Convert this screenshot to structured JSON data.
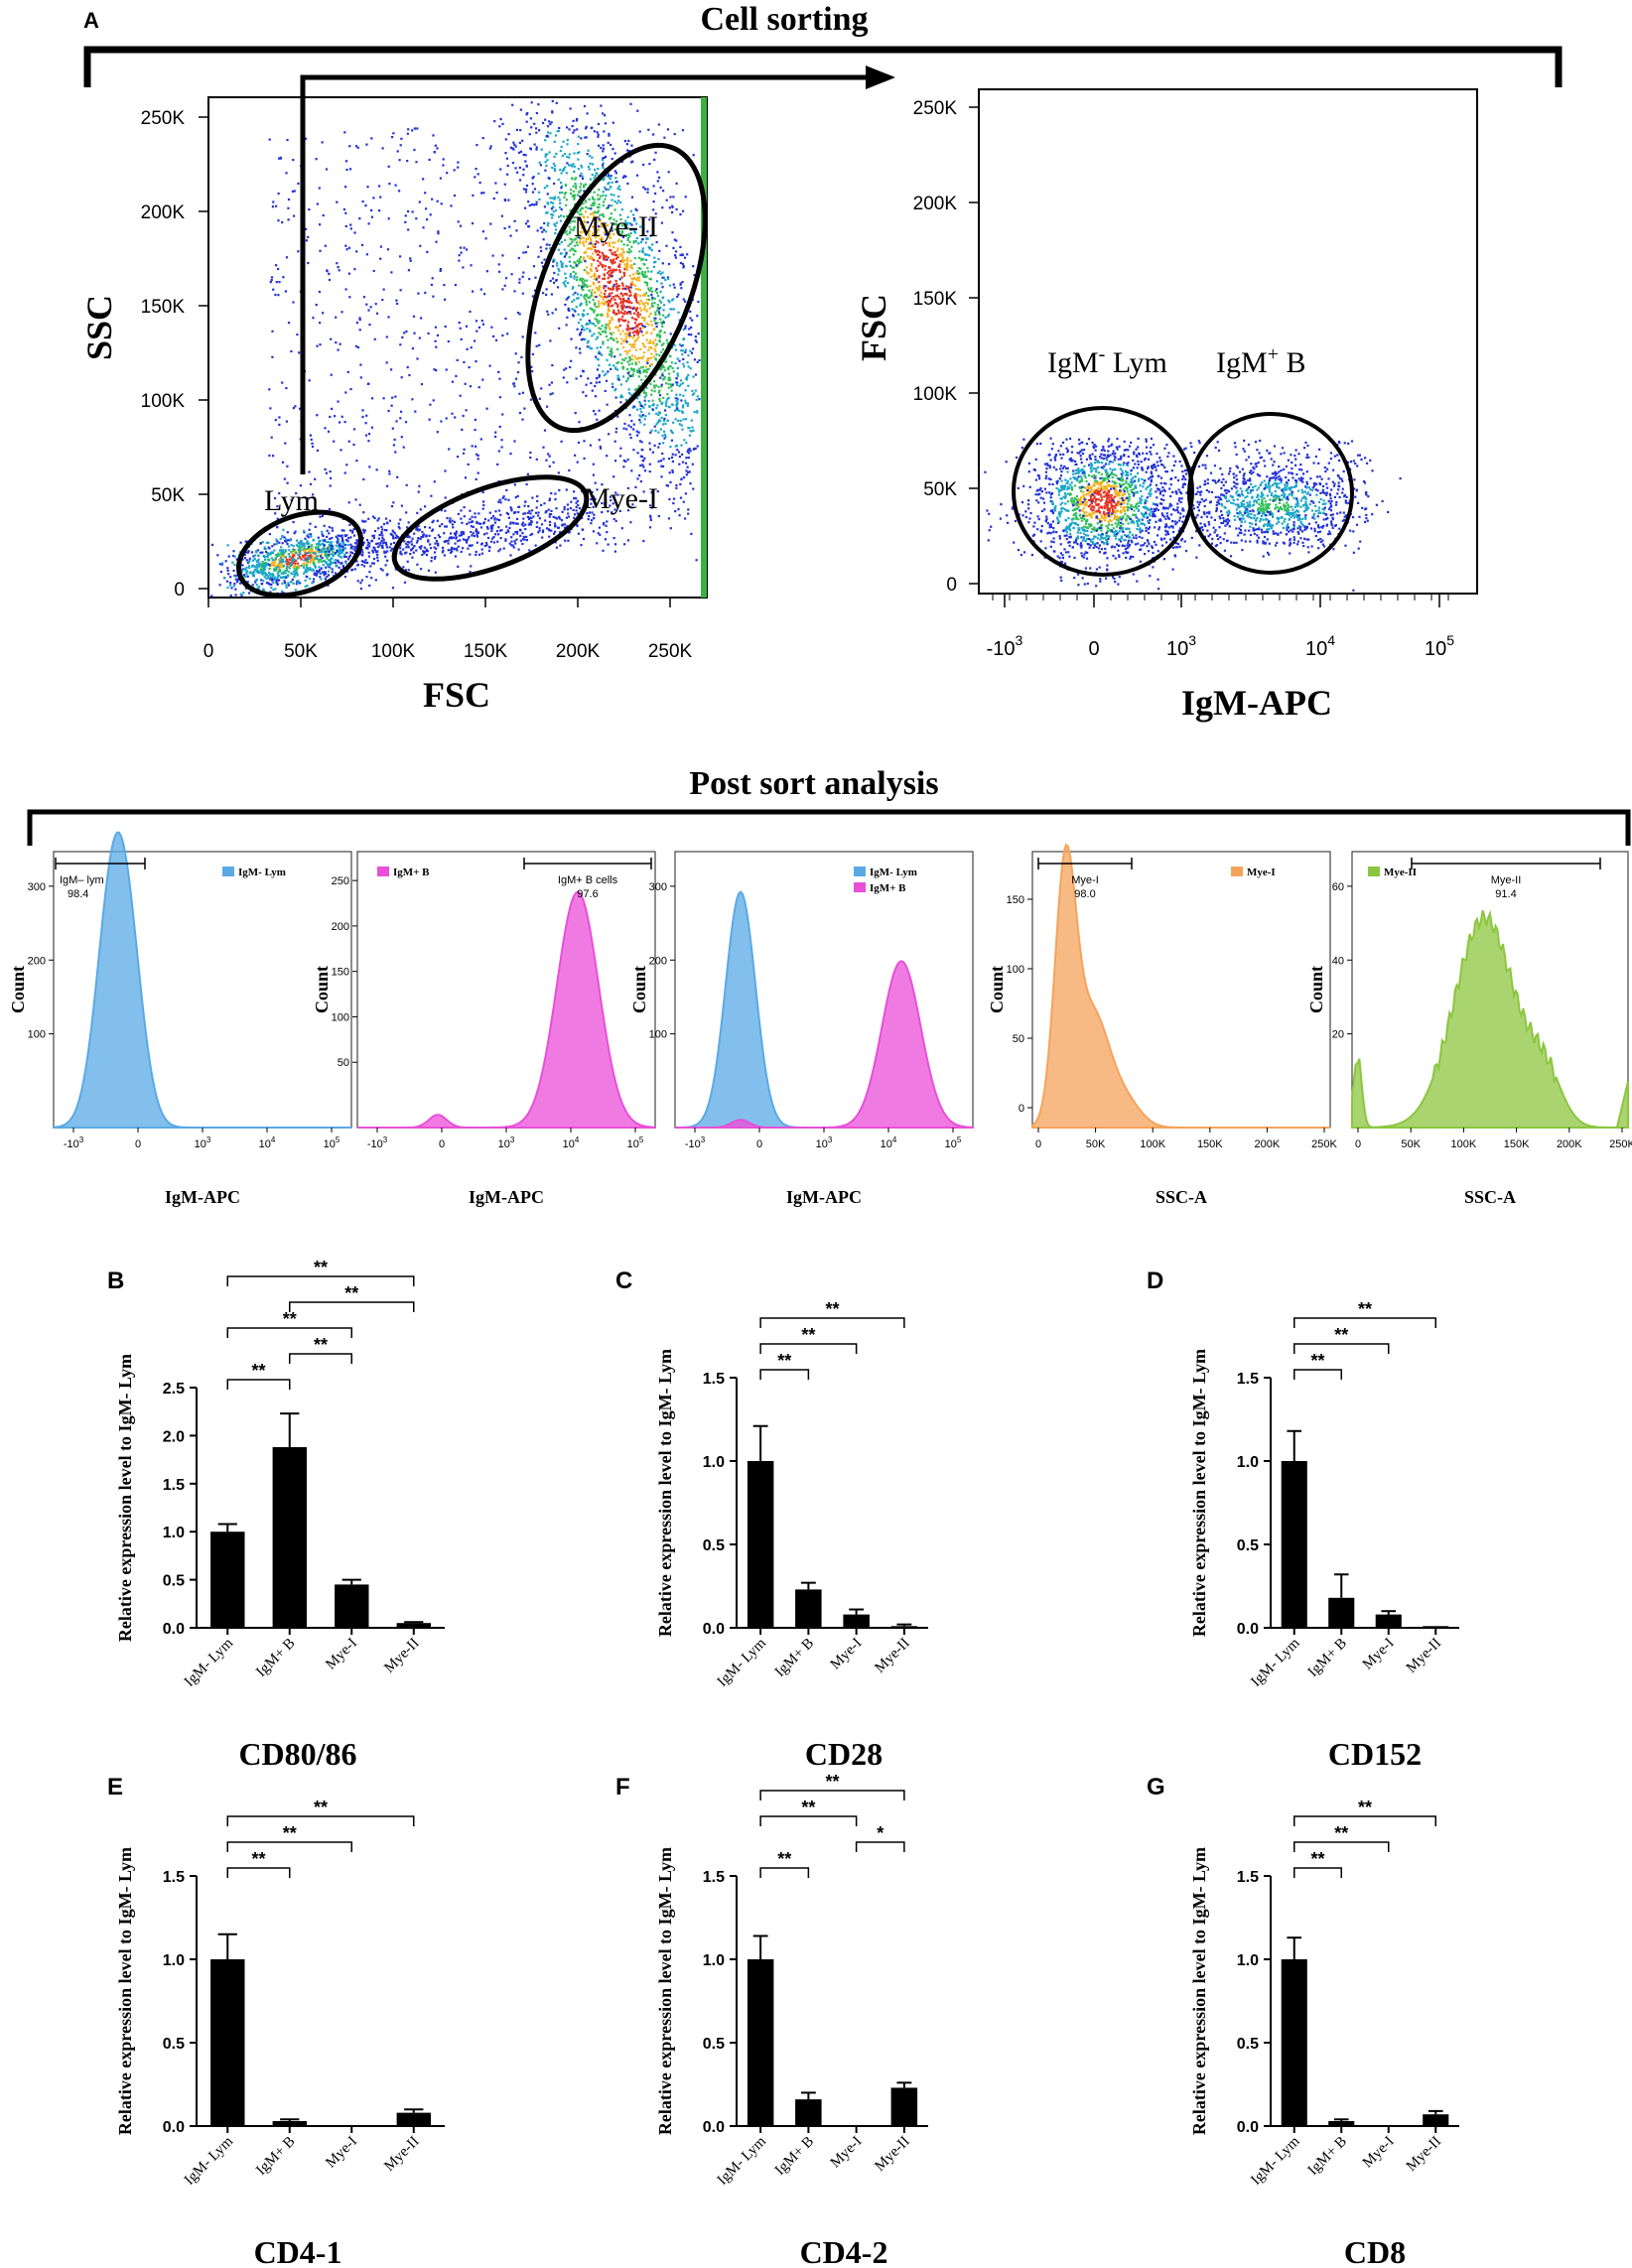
{
  "figure": {
    "panel_a": {
      "letter": "A",
      "title": "Cell sorting",
      "plot1": {
        "xlabel": "FSC",
        "ylabel": "SSC",
        "xticks": [
          "0",
          "50K",
          "100K",
          "150K",
          "200K",
          "250K"
        ],
        "yticks": [
          "0",
          "50K",
          "100K",
          "150K",
          "200K",
          "250K"
        ],
        "gates": [
          "Mye-II",
          "Lym",
          "Mye-I"
        ]
      },
      "plot2": {
        "xlabel": "IgM-APC",
        "ylabel": "FSC",
        "xticks": [
          "-10",
          "0",
          "10",
          "10",
          "10"
        ],
        "xtick_exps": [
          "3",
          "3",
          "4",
          "5"
        ],
        "yticks": [
          "0",
          "50K",
          "100K",
          "150K",
          "200K",
          "250K"
        ],
        "gate1_base": "IgM",
        "gate1_sup": "-",
        "gate1_rest": " Lym",
        "gate2_base": "IgM",
        "gate2_sup": "+",
        "gate2_rest": " B"
      }
    },
    "post_sort": {
      "title": "Post sort analysis",
      "hists": [
        {
          "xlabel": "IgM-APC",
          "ylabel": "Count",
          "yticks": [
            "100",
            "200",
            "300"
          ],
          "gate_label": "IgM– lym",
          "gate_value": "98.4",
          "legend": [
            {
              "label": "IgM- Lym",
              "color": "#5aa9e6"
            }
          ]
        },
        {
          "xlabel": "IgM-APC",
          "ylabel": "Count",
          "yticks": [
            "50",
            "100",
            "150",
            "200",
            "250"
          ],
          "gate_label": "IgM+ B cells",
          "gate_value": "97.6",
          "legend": [
            {
              "label": "IgM+ B",
              "color": "#e94fd8"
            }
          ]
        },
        {
          "xlabel": "IgM-APC",
          "ylabel": "Count",
          "yticks": [
            "100",
            "200",
            "300"
          ],
          "gate_label": "",
          "gate_value": "",
          "legend": [
            {
              "label": "IgM- Lym",
              "color": "#5aa9e6"
            },
            {
              "label": "IgM+ B",
              "color": "#e94fd8"
            }
          ]
        },
        {
          "xlabel": "SSC-A",
          "ylabel": "Count",
          "yticks": [
            "0",
            "50",
            "100",
            "150"
          ],
          "gate_label": "Mye-I",
          "gate_value": "98.0",
          "legend": [
            {
              "label": "Mye-I",
              "color": "#f5a35b"
            }
          ]
        },
        {
          "xlabel": "SSC-A",
          "ylabel": "Count",
          "yticks": [
            "20",
            "40",
            "60"
          ],
          "gate_label": "Mye-II",
          "gate_value": "91.4",
          "legend": [
            {
              "label": "Mye-II",
              "color": "#8cc63f"
            }
          ]
        }
      ],
      "log_xticks": [
        "-10",
        "0",
        "10",
        "10",
        "10"
      ],
      "log_xtick_exps": [
        "3",
        "3",
        "4",
        "5"
      ],
      "lin_xticks": [
        "0",
        "50K",
        "100K",
        "150K",
        "200K",
        "250K"
      ]
    }
  },
  "chart_data": [
    {
      "panel": "B",
      "type": "bar",
      "title": "CD80/86",
      "ylabel": "Relative expression level to IgM- Lym",
      "categories": [
        "IgM- Lym",
        "IgM+ B",
        "Mye-I",
        "Mye-II"
      ],
      "values": [
        1.0,
        1.88,
        0.45,
        0.05
      ],
      "errors": [
        0.08,
        0.35,
        0.05,
        0.01
      ],
      "ylim": [
        0,
        2.5
      ],
      "yticks": [
        "0.0",
        "0.5",
        "1.0",
        "1.5",
        "2.0",
        "2.5"
      ],
      "sig": [
        {
          "from": 0,
          "to": 1,
          "label": "**"
        },
        {
          "from": 1,
          "to": 2,
          "label": "**"
        },
        {
          "from": 0,
          "to": 2,
          "label": "**"
        },
        {
          "from": 1,
          "to": 3,
          "label": "**"
        },
        {
          "from": 0,
          "to": 3,
          "label": "**"
        }
      ]
    },
    {
      "panel": "C",
      "type": "bar",
      "title": "CD28",
      "ylabel": "Relative expression level to IgM- Lym",
      "categories": [
        "IgM- Lym",
        "IgM+ B",
        "Mye-I",
        "Mye-II"
      ],
      "values": [
        1.0,
        0.23,
        0.08,
        0.01
      ],
      "errors": [
        0.21,
        0.04,
        0.03,
        0.01
      ],
      "ylim": [
        0,
        1.5
      ],
      "yticks": [
        "0.0",
        "0.5",
        "1.0",
        "1.5"
      ],
      "sig": [
        {
          "from": 0,
          "to": 1,
          "label": "**"
        },
        {
          "from": 0,
          "to": 2,
          "label": "**"
        },
        {
          "from": 0,
          "to": 3,
          "label": "**"
        }
      ]
    },
    {
      "panel": "D",
      "type": "bar",
      "title": "CD152",
      "ylabel": "Relative expression level to IgM- Lym",
      "categories": [
        "IgM- Lym",
        "IgM+ B",
        "Mye-I",
        "Mye-II"
      ],
      "values": [
        1.0,
        0.18,
        0.08,
        0.01
      ],
      "errors": [
        0.18,
        0.14,
        0.02,
        0.0
      ],
      "ylim": [
        0,
        1.5
      ],
      "yticks": [
        "0.0",
        "0.5",
        "1.0",
        "1.5"
      ],
      "sig": [
        {
          "from": 0,
          "to": 1,
          "label": "**"
        },
        {
          "from": 0,
          "to": 2,
          "label": "**"
        },
        {
          "from": 0,
          "to": 3,
          "label": "**"
        }
      ]
    },
    {
      "panel": "E",
      "type": "bar",
      "title": "CD4-1",
      "ylabel": "Relative expression level to IgM- Lym",
      "categories": [
        "IgM- Lym",
        "IgM+ B",
        "Mye-I",
        "Mye-II"
      ],
      "values": [
        1.0,
        0.03,
        0.0,
        0.08
      ],
      "errors": [
        0.15,
        0.01,
        0.0,
        0.02
      ],
      "ylim": [
        0,
        1.5
      ],
      "yticks": [
        "0.0",
        "0.5",
        "1.0",
        "1.5"
      ],
      "sig": [
        {
          "from": 0,
          "to": 1,
          "label": "**"
        },
        {
          "from": 0,
          "to": 2,
          "label": "**"
        },
        {
          "from": 0,
          "to": 3,
          "label": "**"
        }
      ]
    },
    {
      "panel": "F",
      "type": "bar",
      "title": "CD4-2",
      "ylabel": "Relative expression level to IgM- Lym",
      "categories": [
        "IgM- Lym",
        "IgM+ B",
        "Mye-I",
        "Mye-II"
      ],
      "values": [
        1.0,
        0.16,
        0.0,
        0.23
      ],
      "errors": [
        0.14,
        0.04,
        0.0,
        0.03
      ],
      "ylim": [
        0,
        1.5
      ],
      "yticks": [
        "0.0",
        "0.5",
        "1.0",
        "1.5"
      ],
      "sig": [
        {
          "from": 0,
          "to": 1,
          "label": "**"
        },
        {
          "from": 2,
          "to": 3,
          "label": "*"
        },
        {
          "from": 0,
          "to": 2,
          "label": "**"
        },
        {
          "from": 0,
          "to": 3,
          "label": "**"
        }
      ]
    },
    {
      "panel": "G",
      "type": "bar",
      "title": "CD8",
      "ylabel": "Relative expression level to IgM- Lym",
      "categories": [
        "IgM- Lym",
        "IgM+ B",
        "Mye-I",
        "Mye-II"
      ],
      "values": [
        1.0,
        0.03,
        0.0,
        0.07
      ],
      "errors": [
        0.13,
        0.01,
        0.0,
        0.02
      ],
      "ylim": [
        0,
        1.5
      ],
      "yticks": [
        "0.0",
        "0.5",
        "1.0",
        "1.5"
      ],
      "sig": [
        {
          "from": 0,
          "to": 1,
          "label": "**"
        },
        {
          "from": 0,
          "to": 2,
          "label": "**"
        },
        {
          "from": 0,
          "to": 3,
          "label": "**"
        }
      ]
    }
  ]
}
